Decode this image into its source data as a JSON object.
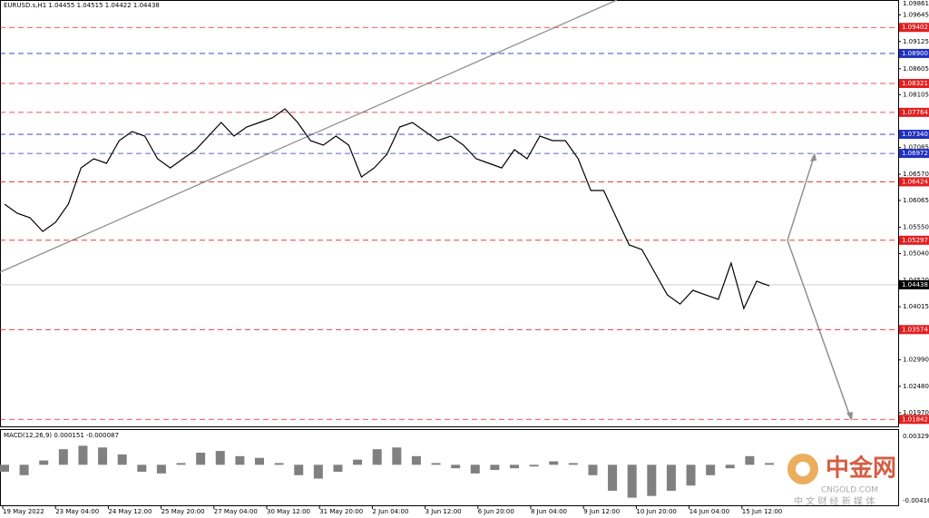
{
  "chart_data": {
    "type": "line",
    "header": "EURUSD.s,H1  1.04455 1.04515 1.04422 1.04438",
    "ylim": [
      1.01707,
      1.09931
    ],
    "yticks": [
      1.09645,
      {
        "value": 1.0913,
        "label": "1.09125"
      },
      1.08605,
      1.08105,
      {
        "value": 1.0776,
        "label": "1.07760"
      },
      1.07085,
      {
        "value": 1.0657,
        "label": "1.06570"
      },
      1.06065,
      {
        "value": 1.0555,
        "label": "1.05550"
      },
      {
        "value": 1.0504,
        "label": "1.05040"
      },
      {
        "value": 1.0452,
        "label": "1.04520"
      },
      1.04015,
      {
        "value": 1.0299,
        "label": "1.02990"
      },
      {
        "value": 1.0248,
        "label": "1.02480"
      },
      {
        "value": 1.0197,
        "label": "1.01970"
      }
    ],
    "top_price": 1.09861,
    "x_labels": [
      "19 May 2022",
      "23 May 04:00",
      "24 May 12:00",
      "25 May 20:00",
      "27 May 04:00",
      "30 May 12:00",
      "31 May 20:00",
      "2 Jun 04:00",
      "3 Jun 12:00",
      "6 Jun 20:00",
      "8 Jun 04:00",
      "9 Jun 12:00",
      "10 Jun 20:00",
      "14 Jun 04:00",
      "15 Jun 12:00"
    ],
    "series": [
      {
        "name": "EURUSD.s",
        "color": "#000000",
        "values": [
          1.05993,
          1.05818,
          1.05731,
          1.05468,
          1.05643,
          1.05993,
          1.06693,
          1.06868,
          1.06781,
          1.07218,
          1.07393,
          1.07306,
          1.06868,
          1.06693,
          1.06868,
          1.07043,
          1.07306,
          1.07568,
          1.07306,
          1.07481,
          1.07568,
          1.07656,
          1.07831,
          1.07568,
          1.07218,
          1.07131,
          1.07306,
          1.07131,
          1.06518,
          1.06693,
          1.06956,
          1.07481,
          1.07568,
          1.07393,
          1.07218,
          1.07306,
          1.07131,
          1.06868,
          1.06781,
          1.06693,
          1.07043,
          1.06868,
          1.07306,
          1.07218,
          1.07218,
          1.06868,
          1.06256,
          1.06256,
          1.05731,
          1.05206,
          1.05118,
          1.04681,
          1.04243,
          1.04068,
          1.04331,
          1.04243,
          1.04156,
          1.04856,
          1.03981,
          1.04506,
          1.04418
        ]
      }
    ],
    "levels": {
      "values": [
        1.09402,
        1.089,
        1.08321,
        1.07764,
        1.0734,
        1.06972,
        1.06424,
        1.05297,
        1.03574,
        1.01842
      ],
      "value_labels": [
        "1.09402",
        "1.08900",
        "1.08321",
        "1.07764",
        "1.07340",
        "1.06972",
        "1.06424",
        "1.05297",
        "1.03574",
        "1.01842"
      ],
      "colors": [
        "#e02020",
        "#2030c0",
        "#e02020",
        "#e02020",
        "#2030c0",
        "#2030c0",
        "#e02020",
        "#e02020",
        "#e02020",
        "#e02020"
      ]
    },
    "current": 1.04438,
    "current_label": "1.04438",
    "macd": {
      "title": "MACD(12,26,9) 0.000151 -0.000087",
      "ylim": [
        -0.00468,
        0.00402
      ],
      "yticks": [
        0.003292,
        -0.004163
      ],
      "color": "#808080",
      "values": [
        -0.0008,
        -0.0012,
        0.0005,
        0.0018,
        0.0022,
        0.002,
        0.0012,
        -0.0008,
        -0.001,
        0.0002,
        0.0014,
        0.0016,
        0.001,
        0.0008,
        0.0002,
        -0.0012,
        -0.0016,
        -0.0008,
        0.0006,
        0.0018,
        0.002,
        0.001,
        0.0002,
        -0.0004,
        -0.001,
        -0.0006,
        -0.0004,
        -0.0002,
        0.0004,
        0.0002,
        -0.0012,
        -0.003,
        -0.0038,
        -0.0036,
        -0.003,
        -0.0024,
        -0.0012,
        -0.0004,
        0.001,
        0.0002
      ]
    },
    "watermark": {
      "brand": "中金网",
      "site": "CNGOLD.COM",
      "slogan": "中 文 财 经 新 媒 体"
    }
  }
}
